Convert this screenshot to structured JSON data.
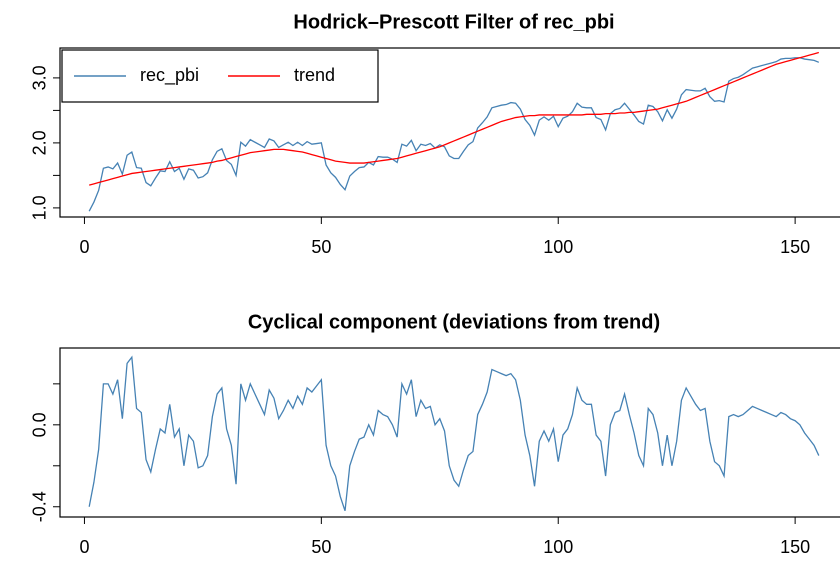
{
  "chart_data": [
    {
      "type": "line",
      "title": "Hodrick–Prescott Filter of rec_pbi",
      "x": [
        1,
        2,
        3,
        4,
        5,
        6,
        7,
        8,
        9,
        10,
        11,
        12,
        13,
        14,
        15,
        16,
        17,
        18,
        19,
        20,
        21,
        22,
        23,
        24,
        25,
        26,
        27,
        28,
        29,
        30,
        31,
        32,
        33,
        34,
        35,
        36,
        37,
        38,
        39,
        40,
        41,
        42,
        43,
        44,
        45,
        46,
        47,
        48,
        49,
        50,
        51,
        52,
        53,
        54,
        55,
        56,
        57,
        58,
        59,
        60,
        61,
        62,
        63,
        64,
        65,
        66,
        67,
        68,
        69,
        70,
        71,
        72,
        73,
        74,
        75,
        76,
        77,
        78,
        79,
        80,
        81,
        82,
        83,
        84,
        85,
        86,
        87,
        88,
        89,
        90,
        91,
        92,
        93,
        94,
        95,
        96,
        97,
        98,
        99,
        100,
        101,
        102,
        103,
        104,
        105,
        106,
        107,
        108,
        109,
        110,
        111,
        112,
        113,
        114,
        115,
        116,
        117,
        118,
        119,
        120,
        121,
        122,
        123,
        124,
        125,
        126,
        127,
        128,
        129,
        130,
        131,
        132,
        133,
        134,
        135,
        136,
        137,
        138,
        139,
        140,
        141,
        142,
        143,
        144,
        145,
        146,
        147,
        148,
        149,
        150,
        151,
        152,
        153,
        154,
        155
      ],
      "series": [
        {
          "name": "rec_pbi",
          "color": "#4682b4",
          "values": [
            0.95,
            1.09,
            1.27,
            1.61,
            1.63,
            1.6,
            1.69,
            1.52,
            1.81,
            1.86,
            1.62,
            1.61,
            1.39,
            1.34,
            1.46,
            1.57,
            1.56,
            1.71,
            1.56,
            1.61,
            1.44,
            1.6,
            1.58,
            1.46,
            1.48,
            1.54,
            1.74,
            1.87,
            1.91,
            1.73,
            1.67,
            1.5,
            2.01,
            1.95,
            2.05,
            2.01,
            1.97,
            1.93,
            2.06,
            2.03,
            1.93,
            1.97,
            2.01,
            1.96,
            2.01,
            1.96,
            2.02,
            1.98,
            1.99,
            2.0,
            1.66,
            1.54,
            1.47,
            1.36,
            1.28,
            1.49,
            1.56,
            1.62,
            1.63,
            1.7,
            1.66,
            1.79,
            1.78,
            1.78,
            1.75,
            1.7,
            1.98,
            1.95,
            2.04,
            1.88,
            1.98,
            1.96,
            1.99,
            1.92,
            1.97,
            1.94,
            1.8,
            1.76,
            1.76,
            1.87,
            1.97,
            2.02,
            2.23,
            2.31,
            2.4,
            2.54,
            2.56,
            2.58,
            2.59,
            2.62,
            2.61,
            2.52,
            2.36,
            2.27,
            2.12,
            2.35,
            2.4,
            2.35,
            2.41,
            2.25,
            2.38,
            2.41,
            2.48,
            2.61,
            2.55,
            2.54,
            2.54,
            2.39,
            2.36,
            2.2,
            2.45,
            2.51,
            2.53,
            2.61,
            2.52,
            2.43,
            2.33,
            2.29,
            2.58,
            2.56,
            2.48,
            2.34,
            2.51,
            2.38,
            2.52,
            2.74,
            2.82,
            2.81,
            2.8,
            2.8,
            2.84,
            2.71,
            2.64,
            2.65,
            2.63,
            2.95,
            2.99,
            3.01,
            3.05,
            3.1,
            3.15,
            3.17,
            3.19,
            3.21,
            3.23,
            3.25,
            3.29,
            3.3,
            3.3,
            3.31,
            3.31,
            3.29,
            3.28,
            3.27,
            3.24
          ]
        },
        {
          "name": "trend",
          "color": "#ff0000",
          "values": [
            1.35,
            1.37,
            1.39,
            1.41,
            1.43,
            1.45,
            1.47,
            1.49,
            1.51,
            1.53,
            1.54,
            1.55,
            1.56,
            1.57,
            1.58,
            1.59,
            1.6,
            1.61,
            1.62,
            1.63,
            1.64,
            1.65,
            1.66,
            1.67,
            1.68,
            1.69,
            1.7,
            1.72,
            1.73,
            1.75,
            1.77,
            1.79,
            1.81,
            1.83,
            1.85,
            1.86,
            1.87,
            1.88,
            1.89,
            1.9,
            1.9,
            1.9,
            1.89,
            1.88,
            1.87,
            1.86,
            1.84,
            1.82,
            1.8,
            1.78,
            1.76,
            1.74,
            1.72,
            1.71,
            1.7,
            1.69,
            1.69,
            1.69,
            1.69,
            1.7,
            1.71,
            1.72,
            1.73,
            1.74,
            1.75,
            1.76,
            1.78,
            1.8,
            1.82,
            1.84,
            1.86,
            1.88,
            1.9,
            1.92,
            1.94,
            1.97,
            2.0,
            2.03,
            2.06,
            2.09,
            2.12,
            2.15,
            2.18,
            2.21,
            2.24,
            2.27,
            2.3,
            2.33,
            2.35,
            2.37,
            2.39,
            2.4,
            2.41,
            2.42,
            2.42,
            2.43,
            2.43,
            2.43,
            2.43,
            2.43,
            2.43,
            2.43,
            2.43,
            2.43,
            2.43,
            2.44,
            2.44,
            2.44,
            2.44,
            2.45,
            2.45,
            2.45,
            2.46,
            2.46,
            2.47,
            2.47,
            2.48,
            2.49,
            2.5,
            2.51,
            2.52,
            2.54,
            2.56,
            2.58,
            2.6,
            2.62,
            2.64,
            2.67,
            2.7,
            2.73,
            2.76,
            2.79,
            2.82,
            2.85,
            2.88,
            2.91,
            2.94,
            2.97,
            3.0,
            3.03,
            3.06,
            3.09,
            3.12,
            3.15,
            3.18,
            3.21,
            3.23,
            3.25,
            3.27,
            3.29,
            3.31,
            3.33,
            3.35,
            3.37,
            3.39
          ]
        }
      ],
      "xlim": [
        -5.16,
        161.16
      ],
      "xticks": [
        0,
        50,
        100,
        150
      ],
      "ylim": [
        0.86,
        3.46
      ],
      "yticks": [
        {
          "value": 1,
          "label": "1.0"
        },
        {
          "value": 1.5,
          "label": null
        },
        {
          "value": 2,
          "label": "2.0"
        },
        {
          "value": 2.5,
          "label": null
        },
        {
          "value": 3,
          "label": "3.0"
        }
      ],
      "legend": "topleft"
    },
    {
      "type": "line",
      "title": "Cyclical component (deviations from trend)",
      "x": [
        1,
        2,
        3,
        4,
        5,
        6,
        7,
        8,
        9,
        10,
        11,
        12,
        13,
        14,
        15,
        16,
        17,
        18,
        19,
        20,
        21,
        22,
        23,
        24,
        25,
        26,
        27,
        28,
        29,
        30,
        31,
        32,
        33,
        34,
        35,
        36,
        37,
        38,
        39,
        40,
        41,
        42,
        43,
        44,
        45,
        46,
        47,
        48,
        49,
        50,
        51,
        52,
        53,
        54,
        55,
        56,
        57,
        58,
        59,
        60,
        61,
        62,
        63,
        64,
        65,
        66,
        67,
        68,
        69,
        70,
        71,
        72,
        73,
        74,
        75,
        76,
        77,
        78,
        79,
        80,
        81,
        82,
        83,
        84,
        85,
        86,
        87,
        88,
        89,
        90,
        91,
        92,
        93,
        94,
        95,
        96,
        97,
        98,
        99,
        100,
        101,
        102,
        103,
        104,
        105,
        106,
        107,
        108,
        109,
        110,
        111,
        112,
        113,
        114,
        115,
        116,
        117,
        118,
        119,
        120,
        121,
        122,
        123,
        124,
        125,
        126,
        127,
        128,
        129,
        130,
        131,
        132,
        133,
        134,
        135,
        136,
        137,
        138,
        139,
        140,
        141,
        142,
        143,
        144,
        145,
        146,
        147,
        148,
        149,
        150,
        151,
        152,
        153,
        154,
        155
      ],
      "color": "#4682b4",
      "values": [
        -0.4,
        -0.28,
        -0.12,
        0.2,
        0.2,
        0.15,
        0.22,
        0.03,
        0.3,
        0.33,
        0.08,
        0.06,
        -0.17,
        -0.23,
        -0.12,
        -0.02,
        -0.04,
        0.1,
        -0.06,
        -0.02,
        -0.2,
        -0.05,
        -0.08,
        -0.21,
        -0.2,
        -0.15,
        0.04,
        0.15,
        0.18,
        -0.02,
        -0.1,
        -0.29,
        0.2,
        0.12,
        0.2,
        0.15,
        0.1,
        0.05,
        0.17,
        0.13,
        0.03,
        0.07,
        0.12,
        0.08,
        0.14,
        0.1,
        0.18,
        0.16,
        0.19,
        0.22,
        -0.1,
        -0.2,
        -0.25,
        -0.35,
        -0.42,
        -0.2,
        -0.13,
        -0.07,
        -0.06,
        0.0,
        -0.05,
        0.07,
        0.05,
        0.04,
        0.0,
        -0.06,
        0.2,
        0.15,
        0.22,
        0.04,
        0.12,
        0.08,
        0.09,
        0.0,
        0.03,
        -0.03,
        -0.2,
        -0.27,
        -0.3,
        -0.22,
        -0.15,
        -0.13,
        0.05,
        0.1,
        0.16,
        0.27,
        0.26,
        0.25,
        0.24,
        0.25,
        0.22,
        0.12,
        -0.05,
        -0.15,
        -0.3,
        -0.08,
        -0.03,
        -0.08,
        -0.02,
        -0.18,
        -0.05,
        -0.02,
        0.05,
        0.18,
        0.12,
        0.1,
        0.1,
        -0.05,
        -0.08,
        -0.25,
        0.0,
        0.06,
        0.07,
        0.15,
        0.05,
        -0.04,
        -0.15,
        -0.2,
        0.08,
        0.05,
        -0.04,
        -0.2,
        -0.05,
        -0.2,
        -0.08,
        0.12,
        0.18,
        0.14,
        0.1,
        0.07,
        0.08,
        -0.08,
        -0.18,
        -0.2,
        -0.25,
        0.04,
        0.05,
        0.04,
        0.05,
        0.07,
        0.09,
        0.08,
        0.07,
        0.06,
        0.05,
        0.04,
        0.06,
        0.05,
        0.03,
        0.02,
        0.0,
        -0.04,
        -0.07,
        -0.1,
        -0.15
      ],
      "xlim": [
        -5.16,
        161.16
      ],
      "xticks": [
        0,
        50,
        100,
        150
      ],
      "ylim": [
        -0.45,
        0.375
      ],
      "yticks": [
        {
          "value": -0.4,
          "label": "-0.4"
        },
        {
          "value": -0.2,
          "label": null
        },
        {
          "value": 0,
          "label": "0.0"
        },
        {
          "value": 0.2,
          "label": null
        }
      ]
    }
  ]
}
